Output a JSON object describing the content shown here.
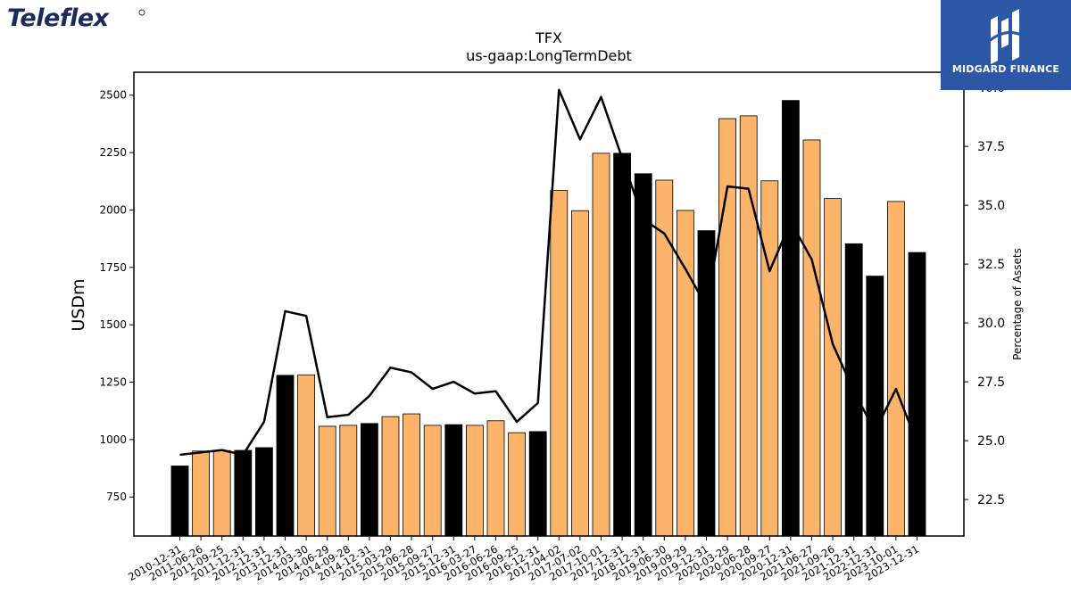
{
  "logos": {
    "left_brand": "Teleflex",
    "right_brand": "MIDGARD FINANCE"
  },
  "colors": {
    "bar_orange": "#fbb46a",
    "bar_black": "#000000",
    "line": "#000000"
  },
  "chart_data": {
    "type": "bar",
    "title": "TFX",
    "subtitle": "us-gaap:LongTermDebt",
    "ylabel": "USDm",
    "y2label": "Percentage of Assets",
    "ylim": [
      580,
      2600
    ],
    "y2lim": [
      20.95,
      40.65
    ],
    "yticks": [
      750,
      1000,
      1250,
      1500,
      1750,
      2000,
      2250,
      2500
    ],
    "y2ticks": [
      "22.5",
      "25.0",
      "27.5",
      "30.0",
      "32.5",
      "35.0",
      "37.5",
      "40.0"
    ],
    "categories": [
      "2010-12-31",
      "2011-06-26",
      "2011-09-25",
      "2011-12-31",
      "2012-12-31",
      "2013-12-31",
      "2014-03-30",
      "2014-06-29",
      "2014-09-28",
      "2014-12-31",
      "2015-03-29",
      "2015-06-28",
      "2015-09-27",
      "2015-12-31",
      "2016-03-27",
      "2016-06-26",
      "2016-09-25",
      "2016-12-31",
      "2017-04-02",
      "2017-07-02",
      "2017-10-01",
      "2017-12-31",
      "2018-12-31",
      "2019-06-30",
      "2019-09-29",
      "2019-12-31",
      "2020-03-29",
      "2020-06-28",
      "2020-09-27",
      "2020-12-31",
      "2021-06-27",
      "2021-09-26",
      "2021-12-31",
      "2022-12-31",
      "2023-10-01",
      "2023-12-31"
    ],
    "series": [
      {
        "type": "bar",
        "values": [
          885,
          950,
          952,
          953,
          965,
          1280,
          1282,
          1058,
          1062,
          1070,
          1100,
          1112,
          1062,
          1065,
          1062,
          1082,
          1030,
          1035,
          2085,
          1997,
          2247,
          2247,
          2158,
          2130,
          1998,
          1910,
          2398,
          2410,
          2127,
          2477,
          2305,
          2050,
          1853,
          1712,
          2037,
          1815
        ],
        "colors": [
          "black",
          "orange",
          "orange",
          "black",
          "black",
          "black",
          "orange",
          "orange",
          "orange",
          "black",
          "orange",
          "orange",
          "orange",
          "black",
          "orange",
          "orange",
          "orange",
          "black",
          "orange",
          "orange",
          "orange",
          "black",
          "black",
          "orange",
          "orange",
          "black",
          "orange",
          "orange",
          "orange",
          "black",
          "orange",
          "orange",
          "black",
          "black",
          "orange",
          "black"
        ]
      },
      {
        "type": "line",
        "axis": "right",
        "values": [
          24.4,
          24.5,
          24.6,
          24.4,
          25.8,
          30.5,
          30.3,
          26.0,
          26.1,
          26.9,
          28.1,
          27.9,
          27.2,
          27.5,
          27.0,
          27.1,
          25.8,
          26.6,
          39.9,
          37.8,
          39.6,
          37.0,
          34.4,
          33.8,
          32.3,
          30.7,
          35.8,
          35.7,
          32.2,
          34.3,
          32.7,
          29.1,
          27.1,
          25.4,
          27.2,
          24.9
        ]
      }
    ]
  }
}
